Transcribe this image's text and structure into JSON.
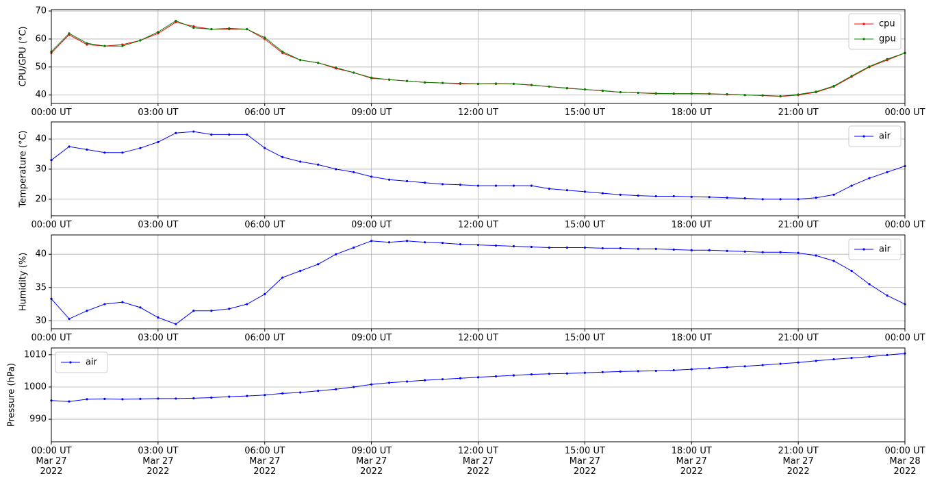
{
  "chart_data": [
    {
      "type": "line",
      "ylabel": "CPU/GPU (°C)",
      "legend": "upper right",
      "grid": true,
      "x": [
        "2022-03-27T00:00Z",
        "2022-03-27T00:30Z",
        "2022-03-27T01:00Z",
        "2022-03-27T01:30Z",
        "2022-03-27T02:00Z",
        "2022-03-27T02:30Z",
        "2022-03-27T03:00Z",
        "2022-03-27T03:30Z",
        "2022-03-27T04:00Z",
        "2022-03-27T04:30Z",
        "2022-03-27T05:00Z",
        "2022-03-27T05:30Z",
        "2022-03-27T06:00Z",
        "2022-03-27T06:30Z",
        "2022-03-27T07:00Z",
        "2022-03-27T07:30Z",
        "2022-03-27T08:00Z",
        "2022-03-27T08:30Z",
        "2022-03-27T09:00Z",
        "2022-03-27T09:30Z",
        "2022-03-27T10:00Z",
        "2022-03-27T10:30Z",
        "2022-03-27T11:00Z",
        "2022-03-27T11:30Z",
        "2022-03-27T12:00Z",
        "2022-03-27T12:30Z",
        "2022-03-27T13:00Z",
        "2022-03-27T13:30Z",
        "2022-03-27T14:00Z",
        "2022-03-27T14:30Z",
        "2022-03-27T15:00Z",
        "2022-03-27T15:30Z",
        "2022-03-27T16:00Z",
        "2022-03-27T16:30Z",
        "2022-03-27T17:00Z",
        "2022-03-27T17:30Z",
        "2022-03-27T18:00Z",
        "2022-03-27T18:30Z",
        "2022-03-27T19:00Z",
        "2022-03-27T19:30Z",
        "2022-03-27T20:00Z",
        "2022-03-27T20:30Z",
        "2022-03-27T21:00Z",
        "2022-03-27T21:30Z",
        "2022-03-27T22:00Z",
        "2022-03-27T22:30Z",
        "2022-03-27T23:00Z",
        "2022-03-27T23:30Z",
        "2022-03-28T00:00Z"
      ],
      "series": [
        {
          "name": "cpu",
          "color": "#ff0000",
          "values": [
            55,
            61.5,
            58,
            57.5,
            58,
            59.5,
            62,
            66,
            64.5,
            63.5,
            63.5,
            63.5,
            60,
            55,
            52.5,
            51.5,
            49.5,
            48,
            46,
            45.5,
            45,
            44.5,
            44.3,
            44,
            44,
            44,
            44,
            43.5,
            43,
            42.5,
            42,
            41.5,
            41,
            40.8,
            40.5,
            40.5,
            40.5,
            40.5,
            40.2,
            40,
            39.8,
            39.5,
            40,
            41,
            43,
            46.5,
            50,
            52.5,
            55
          ]
        },
        {
          "name": "gpu",
          "color": "#008000",
          "values": [
            55.5,
            62,
            58.5,
            57.5,
            57.5,
            59.5,
            62.5,
            66.5,
            64,
            63.5,
            63.8,
            63.5,
            60.5,
            55.5,
            52.5,
            51.5,
            49.8,
            48,
            46.2,
            45.5,
            45,
            44.5,
            44.3,
            44.2,
            44,
            44.1,
            44,
            43.6,
            43,
            42.4,
            42,
            41.6,
            41,
            40.8,
            40.6,
            40.5,
            40.5,
            40.4,
            40.3,
            40,
            39.9,
            39.6,
            40.2,
            41.2,
            43.2,
            46.8,
            50.2,
            52.8,
            55
          ]
        }
      ],
      "xlim": [
        "2022-03-27T00:00Z",
        "2022-03-28T00:00Z"
      ],
      "ylim": [
        37,
        70.5
      ],
      "yticks": [
        40,
        50,
        60,
        70
      ],
      "xticks": [
        {
          "value": "2022-03-27T00:00Z",
          "label": "00:00 UT"
        },
        {
          "value": "2022-03-27T03:00Z",
          "label": "03:00 UT"
        },
        {
          "value": "2022-03-27T06:00Z",
          "label": "06:00 UT"
        },
        {
          "value": "2022-03-27T09:00Z",
          "label": "09:00 UT"
        },
        {
          "value": "2022-03-27T12:00Z",
          "label": "12:00 UT"
        },
        {
          "value": "2022-03-27T15:00Z",
          "label": "15:00 UT"
        },
        {
          "value": "2022-03-27T18:00Z",
          "label": "18:00 UT"
        },
        {
          "value": "2022-03-27T21:00Z",
          "label": "21:00 UT"
        },
        {
          "value": "2022-03-28T00:00Z",
          "label": "00:00 UT"
        }
      ]
    },
    {
      "type": "line",
      "ylabel": "Temperature (°C)",
      "legend": "upper right",
      "grid": true,
      "x": [
        "2022-03-27T00:00Z",
        "2022-03-27T00:30Z",
        "2022-03-27T01:00Z",
        "2022-03-27T01:30Z",
        "2022-03-27T02:00Z",
        "2022-03-27T02:30Z",
        "2022-03-27T03:00Z",
        "2022-03-27T03:30Z",
        "2022-03-27T04:00Z",
        "2022-03-27T04:30Z",
        "2022-03-27T05:00Z",
        "2022-03-27T05:30Z",
        "2022-03-27T06:00Z",
        "2022-03-27T06:30Z",
        "2022-03-27T07:00Z",
        "2022-03-27T07:30Z",
        "2022-03-27T08:00Z",
        "2022-03-27T08:30Z",
        "2022-03-27T09:00Z",
        "2022-03-27T09:30Z",
        "2022-03-27T10:00Z",
        "2022-03-27T10:30Z",
        "2022-03-27T11:00Z",
        "2022-03-27T11:30Z",
        "2022-03-27T12:00Z",
        "2022-03-27T12:30Z",
        "2022-03-27T13:00Z",
        "2022-03-27T13:30Z",
        "2022-03-27T14:00Z",
        "2022-03-27T14:30Z",
        "2022-03-27T15:00Z",
        "2022-03-27T15:30Z",
        "2022-03-27T16:00Z",
        "2022-03-27T16:30Z",
        "2022-03-27T17:00Z",
        "2022-03-27T17:30Z",
        "2022-03-27T18:00Z",
        "2022-03-27T18:30Z",
        "2022-03-27T19:00Z",
        "2022-03-27T19:30Z",
        "2022-03-27T20:00Z",
        "2022-03-27T20:30Z",
        "2022-03-27T21:00Z",
        "2022-03-27T21:30Z",
        "2022-03-27T22:00Z",
        "2022-03-27T22:30Z",
        "2022-03-27T23:00Z",
        "2022-03-27T23:30Z",
        "2022-03-28T00:00Z"
      ],
      "series": [
        {
          "name": "air",
          "color": "#0000ff",
          "values": [
            33,
            37.5,
            36.5,
            35.5,
            35.5,
            37,
            39,
            42,
            42.5,
            41.5,
            41.5,
            41.5,
            37,
            34,
            32.5,
            31.5,
            30,
            29,
            27.5,
            26.5,
            26,
            25.5,
            25,
            24.8,
            24.5,
            24.5,
            24.5,
            24.5,
            23.5,
            23,
            22.5,
            22,
            21.5,
            21.2,
            21,
            21,
            20.8,
            20.7,
            20.5,
            20.3,
            20,
            20,
            20,
            20.5,
            21.5,
            24.5,
            27,
            29,
            31
          ]
        }
      ],
      "xlim": [
        "2022-03-27T00:00Z",
        "2022-03-28T00:00Z"
      ],
      "ylim": [
        14.5,
        45.7
      ],
      "yticks": [
        20,
        30,
        40
      ],
      "xticks": [
        {
          "value": "2022-03-27T00:00Z",
          "label": "00:00 UT"
        },
        {
          "value": "2022-03-27T03:00Z",
          "label": "03:00 UT"
        },
        {
          "value": "2022-03-27T06:00Z",
          "label": "06:00 UT"
        },
        {
          "value": "2022-03-27T09:00Z",
          "label": "09:00 UT"
        },
        {
          "value": "2022-03-27T12:00Z",
          "label": "12:00 UT"
        },
        {
          "value": "2022-03-27T15:00Z",
          "label": "15:00 UT"
        },
        {
          "value": "2022-03-27T18:00Z",
          "label": "18:00 UT"
        },
        {
          "value": "2022-03-27T21:00Z",
          "label": "21:00 UT"
        },
        {
          "value": "2022-03-28T00:00Z",
          "label": "00:00 UT"
        }
      ]
    },
    {
      "type": "line",
      "ylabel": "Humidity (%)",
      "legend": "upper right",
      "grid": true,
      "x": [
        "2022-03-27T00:00Z",
        "2022-03-27T00:30Z",
        "2022-03-27T01:00Z",
        "2022-03-27T01:30Z",
        "2022-03-27T02:00Z",
        "2022-03-27T02:30Z",
        "2022-03-27T03:00Z",
        "2022-03-27T03:30Z",
        "2022-03-27T04:00Z",
        "2022-03-27T04:30Z",
        "2022-03-27T05:00Z",
        "2022-03-27T05:30Z",
        "2022-03-27T06:00Z",
        "2022-03-27T06:30Z",
        "2022-03-27T07:00Z",
        "2022-03-27T07:30Z",
        "2022-03-27T08:00Z",
        "2022-03-27T08:30Z",
        "2022-03-27T09:00Z",
        "2022-03-27T09:30Z",
        "2022-03-27T10:00Z",
        "2022-03-27T10:30Z",
        "2022-03-27T11:00Z",
        "2022-03-27T11:30Z",
        "2022-03-27T12:00Z",
        "2022-03-27T12:30Z",
        "2022-03-27T13:00Z",
        "2022-03-27T13:30Z",
        "2022-03-27T14:00Z",
        "2022-03-27T14:30Z",
        "2022-03-27T15:00Z",
        "2022-03-27T15:30Z",
        "2022-03-27T16:00Z",
        "2022-03-27T16:30Z",
        "2022-03-27T17:00Z",
        "2022-03-27T17:30Z",
        "2022-03-27T18:00Z",
        "2022-03-27T18:30Z",
        "2022-03-27T19:00Z",
        "2022-03-27T19:30Z",
        "2022-03-27T20:00Z",
        "2022-03-27T20:30Z",
        "2022-03-27T21:00Z",
        "2022-03-27T21:30Z",
        "2022-03-27T22:00Z",
        "2022-03-27T22:30Z",
        "2022-03-27T23:00Z",
        "2022-03-27T23:30Z",
        "2022-03-28T00:00Z"
      ],
      "series": [
        {
          "name": "air",
          "color": "#0000ff",
          "values": [
            33.3,
            30.3,
            31.5,
            32.5,
            32.8,
            32,
            30.5,
            29.5,
            31.5,
            31.5,
            31.8,
            32.5,
            34,
            36.5,
            37.5,
            38.5,
            40,
            41,
            42,
            41.8,
            42,
            41.8,
            41.7,
            41.5,
            41.4,
            41.3,
            41.2,
            41.1,
            41,
            41,
            41,
            40.9,
            40.9,
            40.8,
            40.8,
            40.7,
            40.6,
            40.6,
            40.5,
            40.4,
            40.3,
            40.3,
            40.2,
            39.8,
            39,
            37.5,
            35.5,
            33.8,
            32.5
          ]
        }
      ],
      "xlim": [
        "2022-03-27T00:00Z",
        "2022-03-28T00:00Z"
      ],
      "ylim": [
        28.8,
        42.9
      ],
      "yticks": [
        30,
        35,
        40
      ],
      "xticks": [
        {
          "value": "2022-03-27T00:00Z",
          "label": "00:00 UT"
        },
        {
          "value": "2022-03-27T03:00Z",
          "label": "03:00 UT"
        },
        {
          "value": "2022-03-27T06:00Z",
          "label": "06:00 UT"
        },
        {
          "value": "2022-03-27T09:00Z",
          "label": "09:00 UT"
        },
        {
          "value": "2022-03-27T12:00Z",
          "label": "12:00 UT"
        },
        {
          "value": "2022-03-27T15:00Z",
          "label": "15:00 UT"
        },
        {
          "value": "2022-03-27T18:00Z",
          "label": "18:00 UT"
        },
        {
          "value": "2022-03-27T21:00Z",
          "label": "21:00 UT"
        },
        {
          "value": "2022-03-28T00:00Z",
          "label": "00:00 UT"
        }
      ]
    },
    {
      "type": "line",
      "ylabel": "Pressure (hPa)",
      "legend": "upper left",
      "grid": true,
      "x": [
        "2022-03-27T00:00Z",
        "2022-03-27T00:30Z",
        "2022-03-27T01:00Z",
        "2022-03-27T01:30Z",
        "2022-03-27T02:00Z",
        "2022-03-27T02:30Z",
        "2022-03-27T03:00Z",
        "2022-03-27T03:30Z",
        "2022-03-27T04:00Z",
        "2022-03-27T04:30Z",
        "2022-03-27T05:00Z",
        "2022-03-27T05:30Z",
        "2022-03-27T06:00Z",
        "2022-03-27T06:30Z",
        "2022-03-27T07:00Z",
        "2022-03-27T07:30Z",
        "2022-03-27T08:00Z",
        "2022-03-27T08:30Z",
        "2022-03-27T09:00Z",
        "2022-03-27T09:30Z",
        "2022-03-27T10:00Z",
        "2022-03-27T10:30Z",
        "2022-03-27T11:00Z",
        "2022-03-27T11:30Z",
        "2022-03-27T12:00Z",
        "2022-03-27T12:30Z",
        "2022-03-27T13:00Z",
        "2022-03-27T13:30Z",
        "2022-03-27T14:00Z",
        "2022-03-27T14:30Z",
        "2022-03-27T15:00Z",
        "2022-03-27T15:30Z",
        "2022-03-27T16:00Z",
        "2022-03-27T16:30Z",
        "2022-03-27T17:00Z",
        "2022-03-27T17:30Z",
        "2022-03-27T18:00Z",
        "2022-03-27T18:30Z",
        "2022-03-27T19:00Z",
        "2022-03-27T19:30Z",
        "2022-03-27T20:00Z",
        "2022-03-27T20:30Z",
        "2022-03-27T21:00Z",
        "2022-03-27T21:30Z",
        "2022-03-27T22:00Z",
        "2022-03-27T22:30Z",
        "2022-03-27T23:00Z",
        "2022-03-27T23:30Z",
        "2022-03-28T00:00Z"
      ],
      "series": [
        {
          "name": "air",
          "color": "#0000ff",
          "values": [
            995.8,
            995.5,
            996.2,
            996.3,
            996.2,
            996.3,
            996.4,
            996.4,
            996.5,
            996.7,
            997,
            997.2,
            997.5,
            998,
            998.3,
            998.8,
            999.3,
            1000,
            1000.8,
            1001.3,
            1001.7,
            1002.1,
            1002.4,
            1002.7,
            1003,
            1003.3,
            1003.6,
            1003.9,
            1004.1,
            1004.2,
            1004.4,
            1004.6,
            1004.8,
            1004.9,
            1005,
            1005.2,
            1005.5,
            1005.8,
            1006.1,
            1006.4,
            1006.8,
            1007.2,
            1007.6,
            1008.1,
            1008.6,
            1009,
            1009.4,
            1009.9,
            1010.4
          ]
        }
      ],
      "xlim": [
        "2022-03-27T00:00Z",
        "2022-03-28T00:00Z"
      ],
      "ylim": [
        983,
        1012.1
      ],
      "yticks": [
        990,
        1000,
        1010
      ],
      "xticks": [
        {
          "value": "2022-03-27T00:00Z",
          "label": "00:00 UT\nMar 27\n2022"
        },
        {
          "value": "2022-03-27T03:00Z",
          "label": "03:00 UT\nMar 27\n2022"
        },
        {
          "value": "2022-03-27T06:00Z",
          "label": "06:00 UT\nMar 27\n2022"
        },
        {
          "value": "2022-03-27T09:00Z",
          "label": "09:00 UT\nMar 27\n2022"
        },
        {
          "value": "2022-03-27T12:00Z",
          "label": "12:00 UT\nMar 27\n2022"
        },
        {
          "value": "2022-03-27T15:00Z",
          "label": "15:00 UT\nMar 27\n2022"
        },
        {
          "value": "2022-03-27T18:00Z",
          "label": "18:00 UT\nMar 27\n2022"
        },
        {
          "value": "2022-03-27T21:00Z",
          "label": "21:00 UT\nMar 27\n2022"
        },
        {
          "value": "2022-03-28T00:00Z",
          "label": "00:00 UT\nMar 28\n2022"
        }
      ]
    }
  ]
}
